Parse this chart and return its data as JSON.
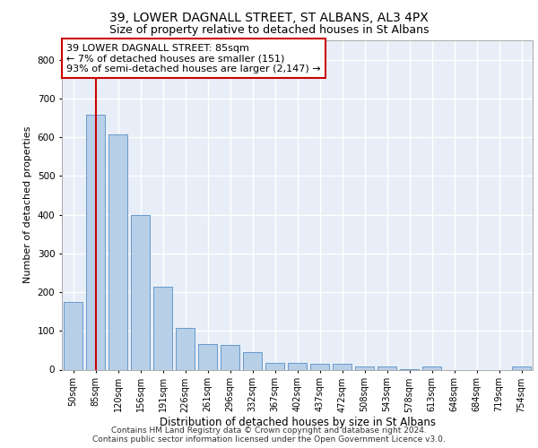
{
  "title1": "39, LOWER DAGNALL STREET, ST ALBANS, AL3 4PX",
  "title2": "Size of property relative to detached houses in St Albans",
  "xlabel": "Distribution of detached houses by size in St Albans",
  "ylabel": "Number of detached properties",
  "footer1": "Contains HM Land Registry data © Crown copyright and database right 2024.",
  "footer2": "Contains public sector information licensed under the Open Government Licence v3.0.",
  "categories": [
    "50sqm",
    "85sqm",
    "120sqm",
    "156sqm",
    "191sqm",
    "226sqm",
    "261sqm",
    "296sqm",
    "332sqm",
    "367sqm",
    "402sqm",
    "437sqm",
    "472sqm",
    "508sqm",
    "543sqm",
    "578sqm",
    "613sqm",
    "648sqm",
    "684sqm",
    "719sqm",
    "754sqm"
  ],
  "values": [
    175,
    658,
    608,
    400,
    215,
    108,
    65,
    63,
    45,
    18,
    17,
    15,
    14,
    8,
    8,
    2,
    8,
    0,
    0,
    0,
    7
  ],
  "bar_color": "#b8cfe8",
  "bar_edge_color": "#6699cc",
  "highlight_bar_index": 1,
  "highlight_line_color": "#cc0000",
  "annotation_line1": "39 LOWER DAGNALL STREET: 85sqm",
  "annotation_line2": "← 7% of detached houses are smaller (151)",
  "annotation_line3": "93% of semi-detached houses are larger (2,147) →",
  "annotation_box_color": "#ffffff",
  "annotation_box_edge_color": "#cc0000",
  "ylim": [
    0,
    850
  ],
  "yticks": [
    0,
    100,
    200,
    300,
    400,
    500,
    600,
    700,
    800
  ],
  "bg_color": "#e8eef7",
  "grid_color": "#ffffff",
  "title1_fontsize": 10,
  "title2_fontsize": 9,
  "annotation_fontsize": 8,
  "ylabel_fontsize": 8,
  "xlabel_fontsize": 8.5,
  "footer_fontsize": 6.5
}
